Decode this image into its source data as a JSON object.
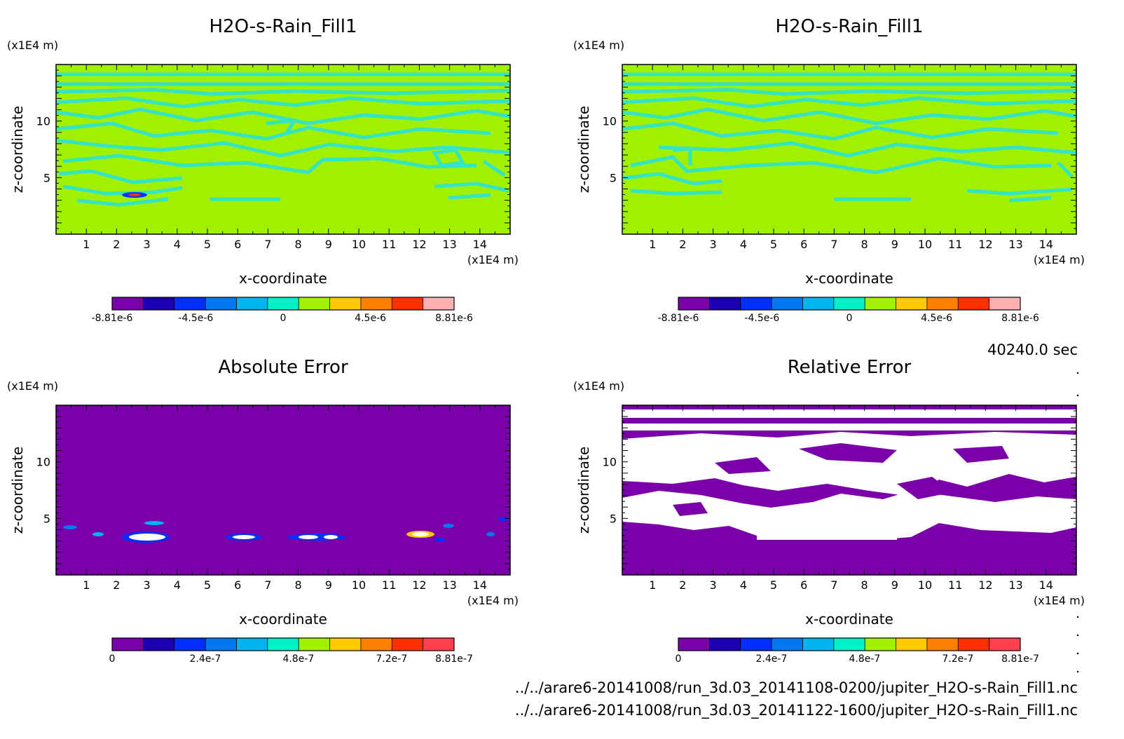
{
  "time_label": "40240.0 sec",
  "files": [
    "../../arare6-20141008/run_3d.03_20141108-0200/jupiter_H2O-s-Rain_Fill1.nc",
    "../../arare6-20141008/run_3d.03_20141122-1600/jupiter_H2O-s-Rain_Fill1.nc"
  ],
  "colors": {
    "background_field": "#a0f000",
    "contour": "#33e5c5",
    "error_background": "#7a00aa",
    "white": "#ffffff",
    "palette": [
      "#7a00aa",
      "#1c00b4",
      "#0030ff",
      "#0078f0",
      "#00b4f0",
      "#00f0c8",
      "#a0f000",
      "#ffc800",
      "#ff8000",
      "#ff3000",
      "#ff4050",
      "#ffb0b0"
    ]
  },
  "chart_data": [
    {
      "type": "heatmap",
      "title": "H2O-s-Rain_Fill1",
      "xlabel": "x-coordinate",
      "ylabel": "z-coordinate",
      "x_unit": "(x1E4 m)",
      "y_unit": "(x1E4 m)",
      "xlim": [
        0,
        15
      ],
      "ylim": [
        0,
        15
      ],
      "xticks": [
        "1",
        "2",
        "3",
        "4",
        "5",
        "6",
        "7",
        "8",
        "9",
        "10",
        "11",
        "12",
        "13",
        "14"
      ],
      "yticks": [
        "5",
        "10"
      ],
      "colorbar": {
        "min": -8.81e-06,
        "max": 8.81e-06,
        "tick_values": [
          -8.81e-06,
          -4.5e-06,
          0,
          4.5e-06,
          8.81e-06
        ],
        "tick_labels": [
          "-8.81e-6",
          "-4.5e-6",
          "0",
          "4.5e-6",
          "8.81e-6"
        ],
        "levels": 11
      }
    },
    {
      "type": "heatmap",
      "title": "H2O-s-Rain_Fill1",
      "xlabel": "x-coordinate",
      "ylabel": "z-coordinate",
      "x_unit": "(x1E4 m)",
      "y_unit": "(x1E4 m)",
      "xlim": [
        0,
        15
      ],
      "ylim": [
        0,
        15
      ],
      "xticks": [
        "1",
        "2",
        "3",
        "4",
        "5",
        "6",
        "7",
        "8",
        "9",
        "10",
        "11",
        "12",
        "13",
        "14"
      ],
      "yticks": [
        "5",
        "10"
      ],
      "colorbar": {
        "min": -8.81e-06,
        "max": 8.81e-06,
        "tick_values": [
          -8.81e-06,
          -4.5e-06,
          0,
          4.5e-06,
          8.81e-06
        ],
        "tick_labels": [
          "-8.81e-6",
          "-4.5e-6",
          "0",
          "4.5e-6",
          "8.81e-6"
        ],
        "levels": 11
      }
    },
    {
      "type": "heatmap",
      "title": "Absolute Error",
      "xlabel": "x-coordinate",
      "ylabel": "z-coordinate",
      "x_unit": "(x1E4 m)",
      "y_unit": "(x1E4 m)",
      "xlim": [
        0,
        15
      ],
      "ylim": [
        0,
        15
      ],
      "xticks": [
        "1",
        "2",
        "3",
        "4",
        "5",
        "6",
        "7",
        "8",
        "9",
        "10",
        "11",
        "12",
        "13",
        "14"
      ],
      "yticks": [
        "5",
        "10"
      ],
      "colorbar": {
        "min": 0,
        "max": 8.81e-07,
        "tick_values": [
          0,
          2.4e-07,
          4.8e-07,
          7.2e-07,
          8.81e-07
        ],
        "tick_labels": [
          "0",
          "2.4e-7",
          "4.8e-7",
          "7.2e-7",
          "8.81e-7"
        ],
        "levels": 11
      }
    },
    {
      "type": "heatmap",
      "title": "Relative Error",
      "xlabel": "x-coordinate",
      "ylabel": "z-coordinate",
      "x_unit": "(x1E4 m)",
      "y_unit": "(x1E4 m)",
      "xlim": [
        0,
        15
      ],
      "ylim": [
        0,
        15
      ],
      "xticks": [
        "1",
        "2",
        "3",
        "4",
        "5",
        "6",
        "7",
        "8",
        "9",
        "10",
        "11",
        "12",
        "13",
        "14"
      ],
      "yticks": [
        "5",
        "10"
      ],
      "colorbar": {
        "min": 0,
        "max": 8.81e-07,
        "tick_values": [
          0,
          2.4e-07,
          4.8e-07,
          7.2e-07,
          8.81e-07
        ],
        "tick_labels": [
          "0",
          "2.4e-7",
          "4.8e-7",
          "7.2e-7",
          "8.81e-7"
        ],
        "levels": 11
      }
    }
  ]
}
